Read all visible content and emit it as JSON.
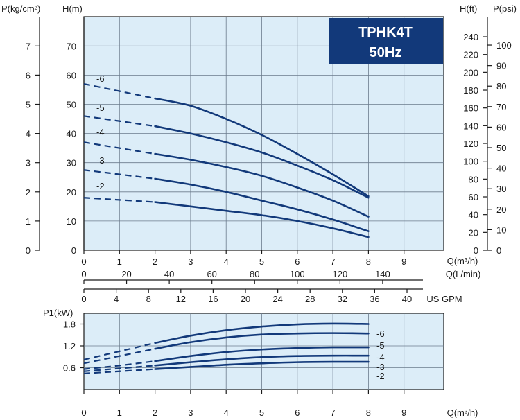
{
  "title": {
    "model": "TPHK4T",
    "freq": "50Hz"
  },
  "colors": {
    "curve": "#12397a",
    "title_bg": "#12397a",
    "plot_bg": "#dcedf8"
  },
  "axes": {
    "p_kgcm2": {
      "label": "P(kg/cm²)",
      "ticks": [
        "0",
        "1",
        "2",
        "3",
        "4",
        "5",
        "6",
        "7"
      ]
    },
    "h_m": {
      "label": "H(m)",
      "ticks": [
        "0",
        "10",
        "20",
        "30",
        "40",
        "50",
        "60",
        "70"
      ]
    },
    "h_ft": {
      "label": "H(ft)",
      "ticks": [
        "0",
        "20",
        "40",
        "60",
        "80",
        "100",
        "120",
        "140",
        "160",
        "180",
        "200",
        "220",
        "240"
      ]
    },
    "p_psi": {
      "label": "P(psi)",
      "ticks": [
        "0",
        "10",
        "20",
        "30",
        "40",
        "50",
        "60",
        "70",
        "80",
        "90",
        "100"
      ]
    },
    "q_m3h": {
      "label": "Q(m³/h)",
      "ticks": [
        "0",
        "1",
        "2",
        "3",
        "4",
        "5",
        "6",
        "7",
        "8",
        "9"
      ]
    },
    "q_lmin": {
      "label": "Q(L/min)",
      "ticks": [
        "0",
        "20",
        "40",
        "60",
        "80",
        "100",
        "120",
        "140"
      ]
    },
    "q_gpm": {
      "label": "US GPM",
      "ticks": [
        "0",
        "4",
        "8",
        "12",
        "16",
        "20",
        "24",
        "28",
        "32",
        "36",
        "40"
      ]
    },
    "p1_kw": {
      "label": "P1(kW)",
      "ticks": [
        "0.6",
        "1.2",
        "1.8"
      ]
    },
    "q_m3h_bottom": {
      "label": "Q(m³/h)",
      "ticks": [
        "0",
        "1",
        "2",
        "3",
        "4",
        "5",
        "6",
        "7",
        "8",
        "9"
      ]
    }
  },
  "chart_data": [
    {
      "type": "line",
      "name": "head",
      "xlabel": "Q(m³/h)",
      "ylabel": "H(m)",
      "xlim": [
        0,
        10
      ],
      "ylim": [
        0,
        75
      ],
      "series": [
        {
          "name": "-6",
          "dashed_x": [
            0,
            2
          ],
          "x": [
            2,
            3,
            4,
            5,
            6,
            7,
            8
          ],
          "y": [
            52,
            49.5,
            45,
            39.5,
            33,
            26,
            18.5
          ],
          "y0": 57
        },
        {
          "name": "-5",
          "dashed_x": [
            0,
            2
          ],
          "x": [
            2,
            3,
            4,
            5,
            6,
            7,
            8
          ],
          "y": [
            42.5,
            40,
            37,
            33.5,
            29,
            24,
            18
          ],
          "y0": 46
        },
        {
          "name": "-4",
          "dashed_x": [
            0,
            2
          ],
          "x": [
            2,
            3,
            4,
            5,
            6,
            7,
            8
          ],
          "y": [
            33,
            31,
            28.5,
            25.5,
            21.5,
            17,
            11.5
          ],
          "y0": 37
        },
        {
          "name": "-3",
          "dashed_x": [
            0,
            2
          ],
          "x": [
            2,
            3,
            4,
            5,
            6,
            7,
            8
          ],
          "y": [
            24.5,
            22.5,
            20,
            17,
            14,
            10.5,
            6.5
          ],
          "y0": 27.5
        },
        {
          "name": "-2",
          "dashed_x": [
            0,
            2
          ],
          "x": [
            2,
            3,
            4,
            5,
            6,
            7,
            8
          ],
          "y": [
            16.5,
            15,
            13.5,
            12,
            10,
            7.5,
            4.5
          ],
          "y0": 18
        }
      ]
    },
    {
      "type": "line",
      "name": "power",
      "xlabel": "Q(m³/h)",
      "ylabel": "P1(kW)",
      "xlim": [
        0,
        10
      ],
      "ylim": [
        0,
        2.1
      ],
      "series": [
        {
          "name": "-6",
          "x": [
            0,
            1,
            2,
            3,
            4,
            5,
            6,
            7,
            8
          ],
          "y": [
            0.82,
            1.05,
            1.28,
            1.48,
            1.63,
            1.73,
            1.79,
            1.81,
            1.8
          ]
        },
        {
          "name": "-5",
          "x": [
            0,
            1,
            2,
            3,
            4,
            5,
            6,
            7,
            8
          ],
          "y": [
            0.72,
            0.92,
            1.12,
            1.3,
            1.43,
            1.51,
            1.54,
            1.55,
            1.54
          ]
        },
        {
          "name": "-4",
          "x": [
            0,
            1,
            2,
            3,
            4,
            5,
            6,
            7,
            8
          ],
          "y": [
            0.56,
            0.66,
            0.78,
            0.92,
            1.03,
            1.1,
            1.14,
            1.16,
            1.16
          ]
        },
        {
          "name": "-3",
          "x": [
            0,
            1,
            2,
            3,
            4,
            5,
            6,
            7,
            8
          ],
          "y": [
            0.5,
            0.58,
            0.66,
            0.75,
            0.83,
            0.89,
            0.92,
            0.93,
            0.93
          ]
        },
        {
          "name": "-2",
          "x": [
            0,
            1,
            2,
            3,
            4,
            5,
            6,
            7,
            8
          ],
          "y": [
            0.44,
            0.5,
            0.56,
            0.62,
            0.68,
            0.72,
            0.75,
            0.76,
            0.76
          ]
        }
      ]
    }
  ]
}
